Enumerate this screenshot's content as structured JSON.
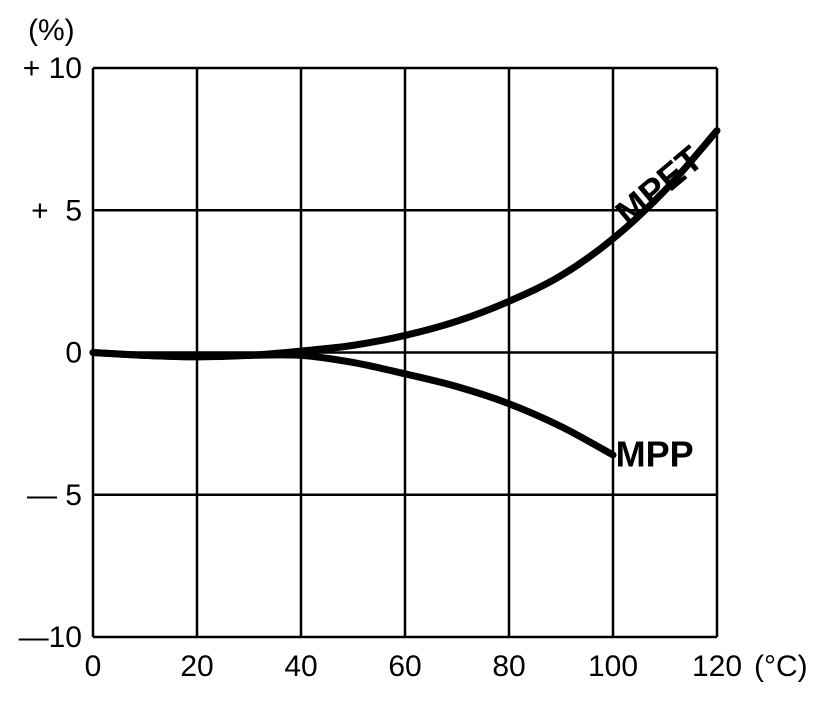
{
  "chart_data": {
    "type": "line",
    "title": "",
    "xlabel": "",
    "ylabel": "",
    "x_unit": "(°C)",
    "y_unit": "(%)",
    "xlim": [
      0,
      120
    ],
    "ylim": [
      -10,
      10
    ],
    "grid": true,
    "x_ticks": [
      {
        "value": 0,
        "label": "0"
      },
      {
        "value": 20,
        "label": "20"
      },
      {
        "value": 40,
        "label": "40"
      },
      {
        "value": 60,
        "label": "60"
      },
      {
        "value": 80,
        "label": "80"
      },
      {
        "value": 100,
        "label": "100"
      },
      {
        "value": 120,
        "label": "120"
      }
    ],
    "y_ticks": [
      {
        "value": 10,
        "label": "+ 10"
      },
      {
        "value": 5,
        "label": "+  5"
      },
      {
        "value": 0,
        "label": "0"
      },
      {
        "value": -5,
        "label": "— 5"
      },
      {
        "value": -10,
        "label": "—10"
      }
    ],
    "series": [
      {
        "name": "MPET",
        "x": [
          0,
          10,
          20,
          30,
          40,
          50,
          60,
          70,
          80,
          90,
          100,
          110,
          120
        ],
        "y": [
          0,
          -0.1,
          -0.15,
          -0.1,
          0.05,
          0.25,
          0.6,
          1.1,
          1.8,
          2.7,
          4.0,
          5.7,
          7.8
        ]
      },
      {
        "name": "MPP",
        "x": [
          0,
          10,
          20,
          30,
          40,
          50,
          60,
          70,
          80,
          90,
          100
        ],
        "y": [
          0,
          -0.1,
          -0.15,
          -0.1,
          -0.1,
          -0.35,
          -0.75,
          -1.2,
          -1.8,
          -2.6,
          -3.6
        ]
      }
    ]
  }
}
